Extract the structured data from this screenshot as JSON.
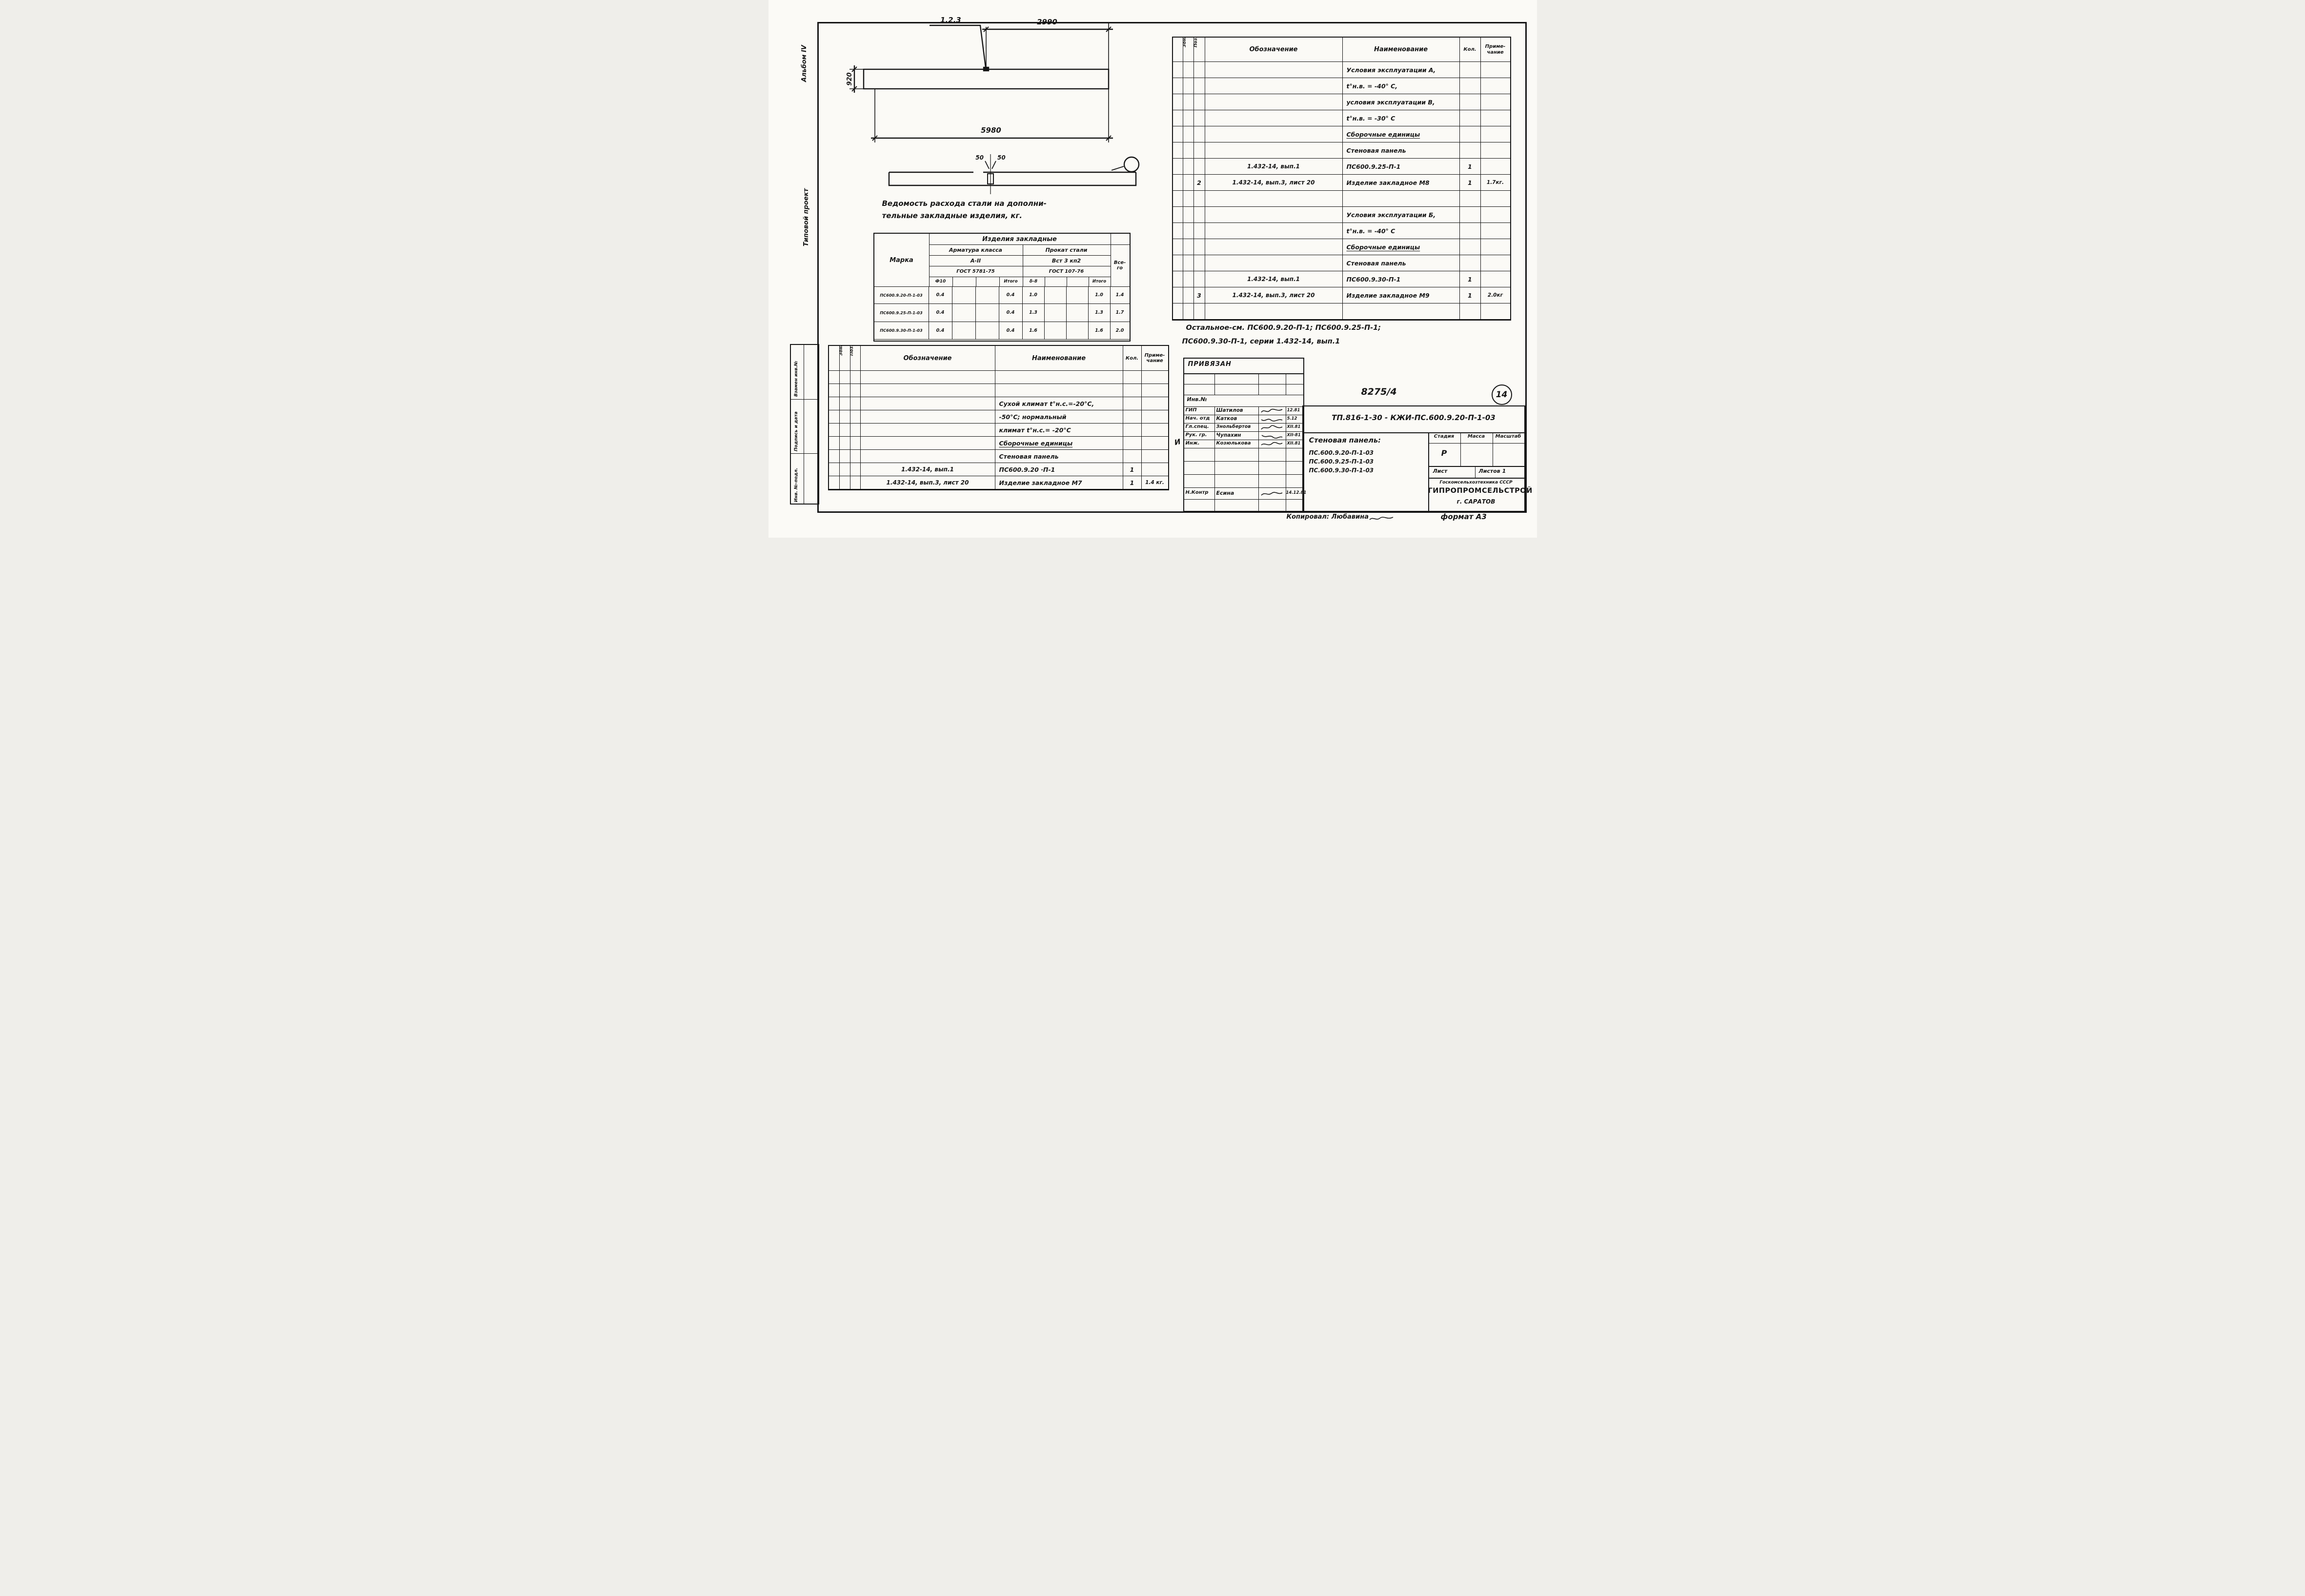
{
  "page": {
    "number": "14",
    "sheet_code": "8275/4",
    "format_note": "формат А3",
    "copied_label": "Копировал: Любавина",
    "handwritten_mark": "И"
  },
  "margin": {
    "album": "Альбом IV",
    "project": "Типовой проект",
    "stamps": [
      "Взамен инв.№",
      "Подпись и дата",
      "Инв. №-подл."
    ]
  },
  "drawing": {
    "callout": "1.2.3",
    "dim_top": "2990",
    "dim_total": "5980",
    "dim_height": "920",
    "dim_50_left": "50",
    "dim_50_right": "50"
  },
  "steel": {
    "title1": "Ведомость расхода стали на дополни-",
    "title2": "тельные закладные изделия, кг.",
    "h": {
      "mark": "Марка",
      "group": "Изделия закладные",
      "arm": "Арматура класса",
      "prokat": "Прокат стали",
      "grade1": "А-II",
      "grade2": "Вст 3 кп2",
      "gost1": "ГОСТ 5781-75",
      "gost2": "ГОСТ 107-76",
      "c_f10": "Ф10",
      "c_itogo": "Итого",
      "c_d8": "δ-8",
      "c_itogo2": "Итого",
      "total1": "Все-",
      "total2": "го"
    },
    "rows": [
      {
        "m": "ПС600.9.20-П-1-03",
        "a1": "0.4",
        "a2": "",
        "a3": "",
        "a4": "0.4",
        "b1": "1.0",
        "b2": "",
        "b3": "",
        "b4": "1.0",
        "v": "1.4"
      },
      {
        "m": "ПС600.9.25-П-1-03",
        "a1": "0.4",
        "a2": "",
        "a3": "",
        "a4": "0.4",
        "b1": "1.3",
        "b2": "",
        "b3": "",
        "b4": "1.3",
        "v": "1.7"
      },
      {
        "m": "ПС600.9.30-П-1-03",
        "a1": "0.4",
        "a2": "",
        "a3": "",
        "a4": "0.4",
        "b1": "1.6",
        "b2": "",
        "b3": "",
        "b4": "1.6",
        "v": "2.0"
      }
    ]
  },
  "spec_h": {
    "format": "Формат",
    "zone": "Зона",
    "pos": "Поз.",
    "oboz": "Обозначение",
    "name": "Наименование",
    "qty": "Кол.",
    "note1": "Приме-",
    "note2": "чание"
  },
  "left_table": {
    "rows": [
      {
        "p": "",
        "o": "",
        "n": "",
        "q": "",
        "t": ""
      },
      {
        "p": "",
        "o": "",
        "n": "",
        "q": "",
        "t": ""
      },
      {
        "p": "",
        "o": "",
        "n": "Сухой климат t°н.с.=-20°C,",
        "q": "",
        "t": ""
      },
      {
        "p": "",
        "o": "",
        "n": "-50°C; нормальный",
        "q": "",
        "t": ""
      },
      {
        "p": "",
        "o": "",
        "n": "климат t°н.с.= -20°C",
        "q": "",
        "t": ""
      },
      {
        "p": "",
        "o": "",
        "n": "Сборочные единицы",
        "q": "",
        "t": "",
        "u": true
      },
      {
        "p": "",
        "o": "",
        "n": "Стеновая панель",
        "q": "",
        "t": ""
      },
      {
        "p": "",
        "o": "1.432-14, вып.1",
        "n": "ПС600.9.20 ·П-1",
        "q": "1",
        "t": ""
      },
      {
        "p": "",
        "o": "1.432-14, вып.3, лист 20",
        "n": "Изделие закладное М7",
        "q": "1",
        "t": "1.4 кг."
      }
    ]
  },
  "right_table": {
    "rows": [
      {
        "p": "",
        "o": "",
        "n": "Условия эксплуатации А,",
        "q": "",
        "t": ""
      },
      {
        "p": "",
        "o": "",
        "n": "t°н.в. = -40° C,",
        "q": "",
        "t": ""
      },
      {
        "p": "",
        "o": "",
        "n": "условия эксплуатации В,",
        "q": "",
        "t": ""
      },
      {
        "p": "",
        "o": "",
        "n": "t°н.в. = -30° C",
        "q": "",
        "t": ""
      },
      {
        "p": "",
        "o": "",
        "n": "Сборочные единицы",
        "q": "",
        "t": "",
        "u": true
      },
      {
        "p": "",
        "o": "",
        "n": "Стеновая панель",
        "q": "",
        "t": ""
      },
      {
        "p": "",
        "o": "1.432-14, вып.1",
        "n": "ПС600.9.25-П-1",
        "q": "1",
        "t": ""
      },
      {
        "p": "2",
        "o": "1.432-14, вып.3, лист 20",
        "n": "Изделие закладное М8",
        "q": "1",
        "t": "1.7кг."
      },
      {
        "p": "",
        "o": "",
        "n": "",
        "q": "",
        "t": ""
      },
      {
        "p": "",
        "o": "",
        "n": "Условия эксплуатации Б,",
        "q": "",
        "t": ""
      },
      {
        "p": "",
        "o": "",
        "n": "t°н.в. = -40° C",
        "q": "",
        "t": ""
      },
      {
        "p": "",
        "o": "",
        "n": "Сборочные единицы",
        "q": "",
        "t": "",
        "u": true
      },
      {
        "p": "",
        "o": "",
        "n": "Стеновая панель",
        "q": "",
        "t": ""
      },
      {
        "p": "",
        "o": "1.432-14, вып.1",
        "n": "ПС600.9.30-П-1",
        "q": "1",
        "t": ""
      },
      {
        "p": "3",
        "o": "1.432-14, вып.3, лист 20",
        "n": "Изделие закладное М9",
        "q": "1",
        "t": "2.0кг"
      },
      {
        "p": "",
        "o": "",
        "n": "",
        "q": "",
        "t": ""
      }
    ]
  },
  "note": {
    "l1": "Остальное-см.  ПС600.9.20-П-1;  ПС600.9.25-П-1;",
    "l2": "ПС600.9.30-П-1,   серии 1.432-14,   вып.1"
  },
  "tb": {
    "privyazan": "ПРИВЯЗАН",
    "inv": "Инв.№",
    "sigs": [
      {
        "role": "ГИП",
        "name": "Шатилов",
        "date": "12.81"
      },
      {
        "role": "Нач. отд",
        "name": "Катков",
        "date": "5.12"
      },
      {
        "role": "Гл.спец.",
        "name": "Знольбертов",
        "date": "XII.81"
      },
      {
        "role": "Рук. гр.",
        "name": "Чупахин",
        "date": "XII-81"
      },
      {
        "role": "Инж.",
        "name": "Козюлькова",
        "date": "XII.81"
      }
    ],
    "control": {
      "role": "Н.Контр",
      "name": "Есина",
      "date": "14.12.81"
    },
    "doc_code": "ТП.816-1-30 - КЖИ-ПС.600.9.20-П-1-03",
    "subject_title": "Стеновая панель:",
    "items": [
      "ПС.600.9.20-П-1-03",
      "ПС.600.9.25-П-1-03",
      "ПС.600.9.30-П-1-03"
    ],
    "stage_l": "Стадия",
    "mass_l": "Масса",
    "scale_l": "Масштаб",
    "stage_v": "Р",
    "sheet_l": "Лист",
    "sheets_l": "Листов 1",
    "org1": "Госкомсельхозтехника СССР",
    "org2": "ГИПРОПРОМСЕЛЬСТРОЙ",
    "org3": "г. САРАТОВ"
  }
}
